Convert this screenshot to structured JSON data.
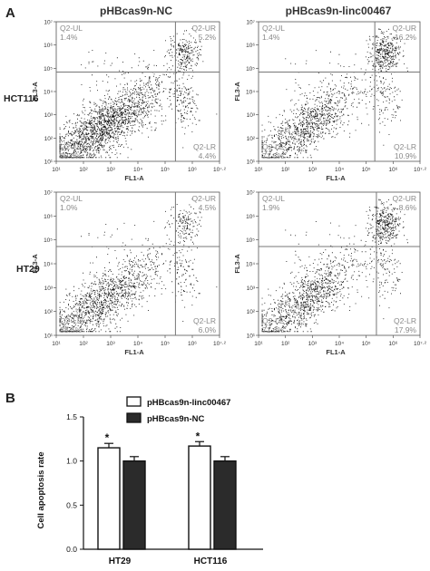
{
  "chart_data": [
    {
      "type": "scatter",
      "panel": "A",
      "column_titles": [
        "pHBcas9n-NC",
        "pHBcas9n-linc00467"
      ],
      "row_labels": [
        "HCT116",
        "HT29"
      ],
      "xlabel": "FL1-A",
      "ylabel": "FL3-A",
      "x_ticks": [
        "10¹",
        "10²",
        "10³",
        "10⁴",
        "10⁵",
        "10⁶",
        "10⁷·²"
      ],
      "y_ticks": [
        "10¹",
        "10²",
        "10³",
        "10⁴",
        "10⁵",
        "10⁶",
        "10⁷"
      ],
      "x_scale": "log",
      "y_scale": "log",
      "plots": [
        {
          "row": 0,
          "col": 0,
          "xlabel": "FL1-A",
          "quadrants": {
            "UL": {
              "label": "Q2-UL",
              "value": "1.4%"
            },
            "UR": {
              "label": "Q2-UR",
              "value": "5.2%"
            },
            "LL": {
              "label": "Q2-LL",
              "value": "89.0%"
            },
            "LR": {
              "label": "Q2-LR",
              "value": "4.4%"
            }
          }
        },
        {
          "row": 0,
          "col": 1,
          "xlabel": "FL1-A",
          "quadrants": {
            "UL": {
              "label": "Q2-UL",
              "value": "1.4%"
            },
            "UR": {
              "label": "Q2-UR",
              "value": "16.2%"
            },
            "LL": {
              "label": "Q2-LL",
              "value": "71.5%"
            },
            "LR": {
              "label": "Q2-LR",
              "value": "10.9%"
            }
          }
        },
        {
          "row": 1,
          "col": 0,
          "xlabel": "FL1-A",
          "quadrants": {
            "UL": {
              "label": "Q2-UL",
              "value": "1.0%"
            },
            "UR": {
              "label": "Q2-UR",
              "value": "4.5%"
            },
            "LL": {
              "label": "Q2-LL",
              "value": "88.5%"
            },
            "LR": {
              "label": "Q2-LR",
              "value": "6.0%"
            }
          }
        },
        {
          "row": 1,
          "col": 1,
          "xlabel": "FL1-A",
          "quadrants": {
            "UL": {
              "label": "Q2-UL",
              "value": "1.9%"
            },
            "UR": {
              "label": "Q2-UR",
              "value": "8.6%"
            },
            "LL": {
              "label": "Q2-LL",
              "value": "71.6%"
            },
            "LR": {
              "label": "Q2-LR",
              "value": "17.9%"
            }
          }
        }
      ]
    },
    {
      "type": "bar",
      "panel": "B",
      "categories": [
        "HT29",
        "HCT116"
      ],
      "series": [
        {
          "name": "pHBcas9n-linc00467",
          "values": [
            1.15,
            1.17
          ],
          "errors": [
            0.05,
            0.05
          ],
          "color": "#ffffff"
        },
        {
          "name": "pHBcas9n-NC",
          "values": [
            1.0,
            1.0
          ],
          "errors": [
            0.05,
            0.05
          ],
          "color": "#2b2b2b"
        }
      ],
      "significance": [
        "*",
        "*"
      ],
      "ylabel": "Cell apoptosis rate",
      "ylim": [
        0,
        1.5
      ],
      "y_ticks": [
        "0.0",
        "0.5",
        "1.0",
        "1.5"
      ],
      "legend": "top"
    }
  ]
}
